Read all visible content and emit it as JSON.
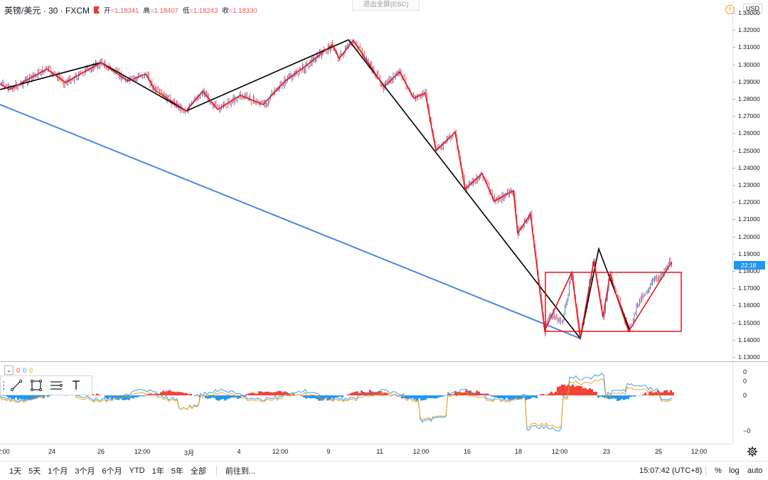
{
  "legend": {
    "symbol": "英镑/美元 · 30 · FXCM",
    "open_label": "开",
    "open": "=1.18341",
    "high_label": "高",
    "high": "=1.18407",
    "low_label": "低",
    "low": "=1.18243",
    "close_label": "收",
    "close": "=1.18330"
  },
  "esc_button": "退出全屏(ESC)",
  "currency": "USD",
  "last_price_tag": "22:18",
  "price_ticks": [
    "1.33000",
    "1.32000",
    "1.31000",
    "1.30000",
    "1.29000",
    "1.28000",
    "1.27000",
    "1.26000",
    "1.25000",
    "1.24000",
    "1.23000",
    "1.22000",
    "1.21000",
    "1.20000",
    "1.19000",
    "1.18000",
    "1.17000",
    "1.16000",
    "1.15000",
    "1.14000",
    "1.13000"
  ],
  "oscillator": {
    "values": [
      "0",
      "0",
      "0"
    ],
    "ticks": [
      "0",
      "0",
      "0",
      "−0"
    ]
  },
  "time_ticks": [
    "2:00",
    "24",
    "26",
    "12:00",
    "3月",
    "4",
    "12:00",
    "9",
    "11",
    "12:00",
    "16",
    "18",
    "12:00",
    "23",
    "12:00",
    "25",
    "12:00"
  ],
  "bottom_bar": {
    "ranges": [
      "1天",
      "5天",
      "1个月",
      "3个月",
      "6个月",
      "YTD",
      "1年",
      "5年",
      "全部"
    ],
    "goto": "前往到...",
    "clock": "15:07:42 (UTC+8)",
    "percent": "%",
    "log": "log",
    "auto": "auto"
  },
  "colors": {
    "candle_up": "#3f51b5",
    "candle_down": "#ef5350",
    "zigzag_red": "#e8151b",
    "zigzag_black": "#000000",
    "trendline_blue": "#4a86e8",
    "hist_up": "#f44336",
    "hist_down": "#2196f3"
  },
  "icons": [
    "warning-icon",
    "flag-icon",
    "trend-line-icon",
    "rectangle-icon",
    "fib-icon",
    "text-icon",
    "gear-icon"
  ]
}
